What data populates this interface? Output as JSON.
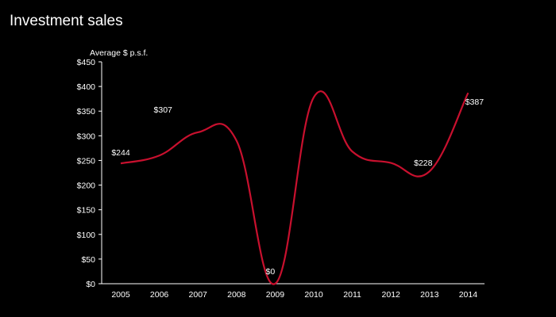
{
  "title": "Investment sales",
  "chart_data": {
    "type": "line",
    "title": "Investment sales",
    "ylabel": "Average $ p.s.f.",
    "xlabel": "",
    "x": [
      "2005",
      "2006",
      "2007",
      "2008",
      "2009",
      "2010",
      "2011",
      "2012",
      "2013",
      "2014"
    ],
    "series": [
      {
        "values": [
          244,
          260,
          307,
          290,
          0,
          378,
          268,
          245,
          228,
          387
        ],
        "color": "#c8102e"
      }
    ],
    "ylim": [
      0,
      450
    ],
    "yticks": [
      "$0",
      "$50",
      "$100",
      "$150",
      "$200",
      "$250",
      "$300",
      "$350",
      "$400",
      "$450"
    ],
    "data_labels": [
      {
        "x": "2005",
        "text": "$244"
      },
      {
        "x": "2007",
        "text": "$307"
      },
      {
        "x": "2009",
        "text": "$0"
      },
      {
        "x": "2013",
        "text": "$228"
      },
      {
        "x": "2014",
        "text": "$387"
      }
    ],
    "grid": false,
    "legend": "none"
  }
}
